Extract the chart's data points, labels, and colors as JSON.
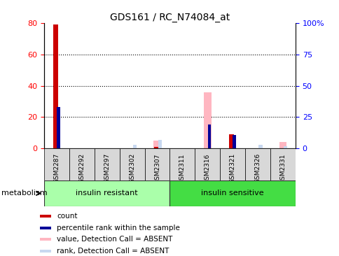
{
  "title": "GDS161 / RC_N74084_at",
  "samples": [
    "GSM2287",
    "GSM2292",
    "GSM2297",
    "GSM2302",
    "GSM2307",
    "GSM2311",
    "GSM2316",
    "GSM2321",
    "GSM2326",
    "GSM2331"
  ],
  "count_values": [
    79,
    0,
    0,
    0,
    1,
    0,
    0,
    9,
    0,
    0
  ],
  "percentile_values": [
    33,
    0,
    0,
    0,
    0,
    0,
    19,
    11,
    0,
    0
  ],
  "absent_value_values": [
    0,
    0,
    0,
    0,
    5,
    0,
    36,
    0,
    0,
    4
  ],
  "absent_rank_values": [
    0,
    0,
    0,
    3,
    7,
    0,
    0,
    0,
    3,
    2
  ],
  "groups": [
    {
      "label": "insulin resistant",
      "start": 0,
      "end": 5,
      "color": "#aaffaa"
    },
    {
      "label": "insulin sensitive",
      "start": 5,
      "end": 10,
      "color": "#44dd44"
    }
  ],
  "group_label": "metabolism",
  "ylim_left": [
    0,
    80
  ],
  "ylim_right": [
    0,
    100
  ],
  "yticks_left": [
    0,
    20,
    40,
    60,
    80
  ],
  "yticks_right": [
    0,
    25,
    50,
    75,
    100
  ],
  "ytick_labels_right": [
    "0",
    "25",
    "50",
    "75",
    "100%"
  ],
  "color_count": "#cc0000",
  "color_percentile": "#000099",
  "color_absent_value": "#ffb6c1",
  "color_absent_rank": "#c8d8f0",
  "bar_width": 0.15,
  "background_color": "#ffffff",
  "dotted_lines": [
    20,
    40,
    60
  ],
  "xticklabel_bg": "#d8d8d8"
}
